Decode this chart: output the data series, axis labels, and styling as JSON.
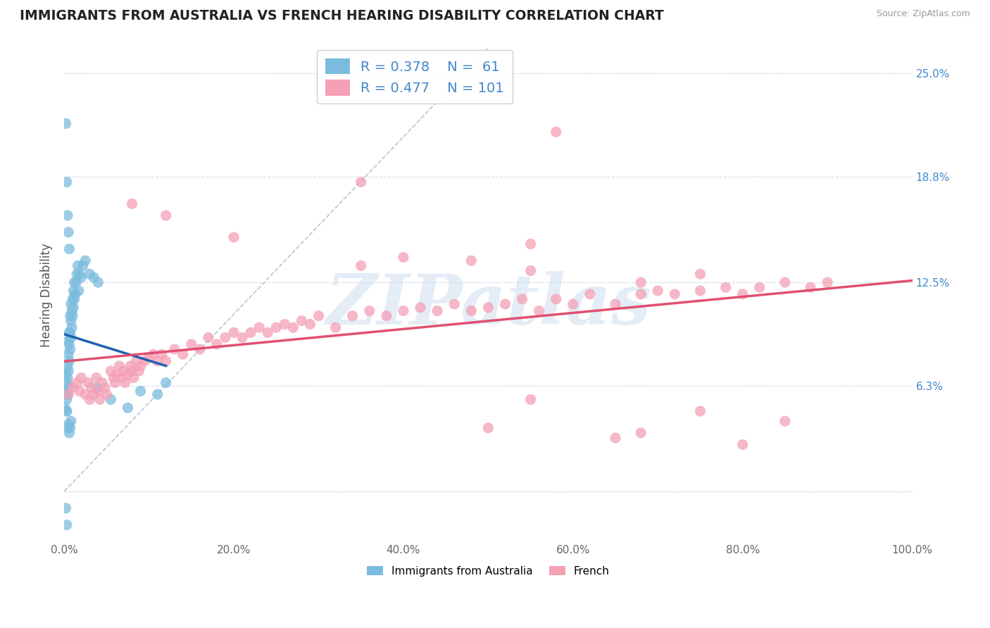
{
  "title": "IMMIGRANTS FROM AUSTRALIA VS FRENCH HEARING DISABILITY CORRELATION CHART",
  "source": "Source: ZipAtlas.com",
  "ylabel": "Hearing Disability",
  "legend_label1": "Immigrants from Australia",
  "legend_label2": "French",
  "R1": 0.378,
  "N1": 61,
  "R2": 0.477,
  "N2": 101,
  "color1": "#7bbcde",
  "color2": "#f4a0b5",
  "line1_color": "#2060b0",
  "line2_color": "#e05070",
  "diag_color": "#aabbcc",
  "xlim": [
    0.0,
    1.0
  ],
  "ylim": [
    -0.03,
    0.265
  ],
  "yticks": [
    0.0,
    0.063,
    0.125,
    0.188,
    0.25
  ],
  "ytick_labels": [
    "",
    "6.3%",
    "12.5%",
    "18.8%",
    "25.0%"
  ],
  "xtick_labels": [
    "0.0%",
    "",
    "20.0%",
    "",
    "40.0%",
    "",
    "60.0%",
    "",
    "80.0%",
    "",
    "100.0%"
  ],
  "xticks": [
    0.0,
    0.1,
    0.2,
    0.3,
    0.4,
    0.5,
    0.6,
    0.7,
    0.8,
    0.9,
    1.0
  ],
  "watermark": "ZIPatlas",
  "background": "#ffffff",
  "grid_color": "#d0dce8",
  "blue_points_x": [
    0.001,
    0.002,
    0.002,
    0.003,
    0.003,
    0.003,
    0.004,
    0.004,
    0.004,
    0.005,
    0.005,
    0.005,
    0.005,
    0.006,
    0.006,
    0.006,
    0.007,
    0.007,
    0.007,
    0.008,
    0.008,
    0.008,
    0.009,
    0.009,
    0.01,
    0.01,
    0.011,
    0.011,
    0.012,
    0.012,
    0.013,
    0.014,
    0.015,
    0.016,
    0.017,
    0.018,
    0.02,
    0.022,
    0.025,
    0.03,
    0.035,
    0.04,
    0.003,
    0.004,
    0.005,
    0.006,
    0.007,
    0.008,
    0.002,
    0.003,
    0.004,
    0.005,
    0.006,
    0.038,
    0.055,
    0.075,
    0.09,
    0.11,
    0.12,
    0.002,
    0.003
  ],
  "blue_points_y": [
    0.05,
    0.06,
    0.07,
    0.055,
    0.065,
    0.048,
    0.058,
    0.068,
    0.075,
    0.062,
    0.072,
    0.082,
    0.09,
    0.078,
    0.088,
    0.095,
    0.085,
    0.095,
    0.105,
    0.092,
    0.102,
    0.112,
    0.098,
    0.108,
    0.105,
    0.115,
    0.11,
    0.12,
    0.115,
    0.125,
    0.118,
    0.125,
    0.13,
    0.135,
    0.12,
    0.13,
    0.128,
    0.135,
    0.138,
    0.13,
    0.128,
    0.125,
    0.048,
    0.038,
    0.04,
    0.035,
    0.038,
    0.042,
    0.22,
    0.185,
    0.165,
    0.155,
    0.145,
    0.062,
    0.055,
    0.05,
    0.06,
    0.058,
    0.065,
    -0.01,
    -0.02
  ],
  "pink_points_x": [
    0.005,
    0.01,
    0.015,
    0.018,
    0.02,
    0.025,
    0.028,
    0.03,
    0.032,
    0.035,
    0.038,
    0.04,
    0.042,
    0.045,
    0.048,
    0.05,
    0.055,
    0.058,
    0.06,
    0.062,
    0.065,
    0.068,
    0.07,
    0.072,
    0.075,
    0.078,
    0.08,
    0.082,
    0.085,
    0.088,
    0.09,
    0.095,
    0.1,
    0.105,
    0.11,
    0.115,
    0.12,
    0.13,
    0.14,
    0.15,
    0.16,
    0.17,
    0.18,
    0.19,
    0.2,
    0.21,
    0.22,
    0.23,
    0.24,
    0.25,
    0.26,
    0.27,
    0.28,
    0.29,
    0.3,
    0.32,
    0.34,
    0.36,
    0.38,
    0.4,
    0.42,
    0.44,
    0.46,
    0.48,
    0.5,
    0.52,
    0.54,
    0.56,
    0.58,
    0.6,
    0.62,
    0.65,
    0.68,
    0.7,
    0.72,
    0.75,
    0.78,
    0.8,
    0.82,
    0.85,
    0.88,
    0.9,
    0.08,
    0.12,
    0.2,
    0.35,
    0.5,
    0.65,
    0.8,
    0.58,
    0.35,
    0.55,
    0.68,
    0.75,
    0.85,
    0.55,
    0.4,
    0.48,
    0.55,
    0.68,
    0.75
  ],
  "pink_points_y": [
    0.058,
    0.062,
    0.065,
    0.06,
    0.068,
    0.058,
    0.065,
    0.055,
    0.062,
    0.058,
    0.068,
    0.06,
    0.055,
    0.065,
    0.062,
    0.058,
    0.072,
    0.068,
    0.065,
    0.07,
    0.075,
    0.068,
    0.072,
    0.065,
    0.07,
    0.075,
    0.072,
    0.068,
    0.078,
    0.072,
    0.075,
    0.078,
    0.08,
    0.082,
    0.078,
    0.082,
    0.078,
    0.085,
    0.082,
    0.088,
    0.085,
    0.092,
    0.088,
    0.092,
    0.095,
    0.092,
    0.095,
    0.098,
    0.095,
    0.098,
    0.1,
    0.098,
    0.102,
    0.1,
    0.105,
    0.098,
    0.105,
    0.108,
    0.105,
    0.108,
    0.11,
    0.108,
    0.112,
    0.108,
    0.11,
    0.112,
    0.115,
    0.108,
    0.115,
    0.112,
    0.118,
    0.112,
    0.118,
    0.12,
    0.118,
    0.12,
    0.122,
    0.118,
    0.122,
    0.125,
    0.122,
    0.125,
    0.172,
    0.165,
    0.152,
    0.135,
    0.038,
    0.032,
    0.028,
    0.215,
    0.185,
    0.055,
    0.035,
    0.048,
    0.042,
    0.148,
    0.14,
    0.138,
    0.132,
    0.125,
    0.13
  ]
}
